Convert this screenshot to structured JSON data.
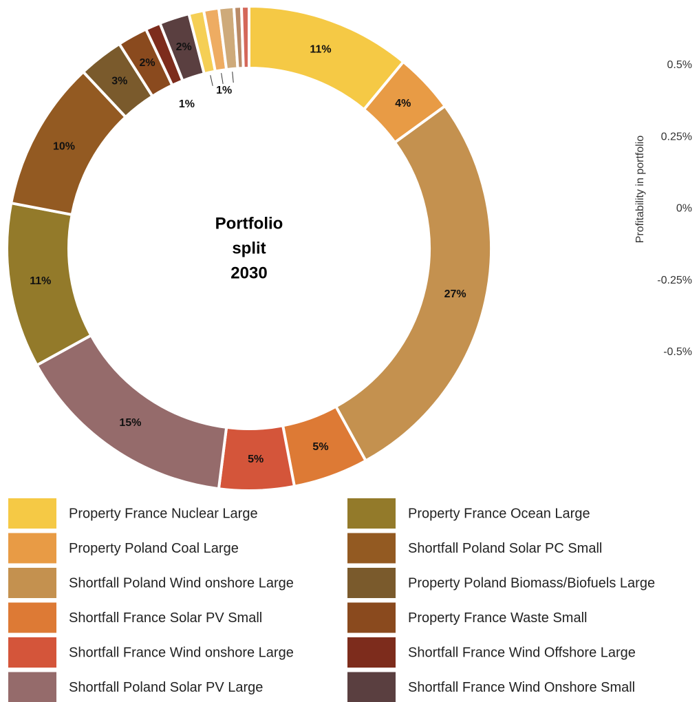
{
  "chart_data": {
    "type": "donut",
    "center_text": [
      "Portfolio",
      "split",
      "2030"
    ],
    "categories": [
      "Property France Nuclear Large",
      "Property Poland Coal Large",
      "Shortfall Poland Wind onshore Large",
      "Shortfall France Solar PV Small",
      "Shortfall France Wind onshore Large",
      "Shortfall Poland Solar PV Large",
      "Property France Ocean Large",
      "Shortfall Poland Solar PC Small",
      "Property Poland Biomass/Biofuels Large",
      "Property France Waste Small",
      "Shortfall France Wind Offshore Large",
      "Shortfall France Wind Onshore Small",
      null,
      null,
      null,
      null,
      null
    ],
    "values": [
      11,
      4,
      27,
      5,
      5,
      15,
      11,
      10,
      3,
      2,
      1,
      2,
      1,
      1,
      1,
      0.5,
      0.5
    ],
    "value_labels": [
      "11%",
      "4%",
      "27%",
      "5%",
      "5%",
      "15%",
      "11%",
      "10%",
      "3%",
      "2%",
      "1%",
      "2%",
      null,
      "1%",
      null,
      null,
      null
    ],
    "colors": [
      "#f5c945",
      "#e89b45",
      "#c4914f",
      "#dd7a35",
      "#d4553a",
      "#956b6b",
      "#937a2a",
      "#935a22",
      "#7a5a2c",
      "#8a4a1e",
      "#7d2c1c",
      "#5a3f40",
      "#f5cf55",
      "#eeac62",
      "#ceaa7a",
      "#b98a66",
      "#d4685a"
    ],
    "side_axis": {
      "label": "Profitability in portfolio",
      "lim": [
        -0.5,
        0.5
      ],
      "ticks": [
        {
          "value": 0.5,
          "label": "0.5%"
        },
        {
          "value": 0.25,
          "label": "0.25%"
        },
        {
          "value": 0,
          "label": "0%"
        },
        {
          "value": -0.25,
          "label": "-0.25%"
        },
        {
          "value": -0.5,
          "label": "-0.5%"
        }
      ]
    }
  }
}
